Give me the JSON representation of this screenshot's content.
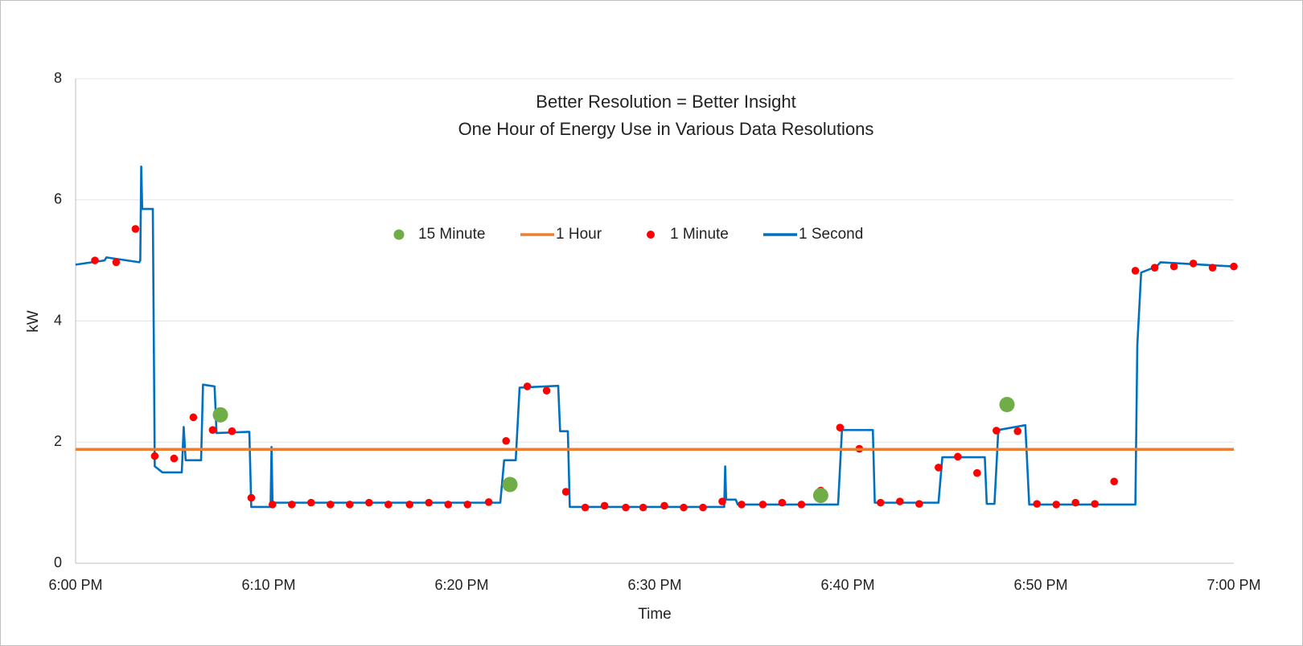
{
  "chart_data": {
    "type": "line",
    "title": "Better Resolution = Better Insight",
    "subtitle": "One Hour of Energy Use in Various Data Resolutions",
    "xlabel": "Time",
    "ylabel": "kW",
    "xlim": [
      0,
      60
    ],
    "xticks": [
      {
        "value": 0,
        "label": "6:00 PM"
      },
      {
        "value": 10,
        "label": "6:10 PM"
      },
      {
        "value": 20,
        "label": "6:20 PM"
      },
      {
        "value": 30,
        "label": "6:30 PM"
      },
      {
        "value": 40,
        "label": "6:40 PM"
      },
      {
        "value": 50,
        "label": "6:50 PM"
      },
      {
        "value": 60,
        "label": "7:00 PM"
      }
    ],
    "ylim": [
      0,
      8
    ],
    "yticks": [
      0,
      2,
      4,
      6,
      8
    ],
    "grid": true,
    "legend": "top",
    "series": [
      {
        "name": "15 Minute",
        "type": "scatter",
        "color": "#70ad47",
        "x": [
          7.5,
          22.5,
          38.6,
          48.25
        ],
        "values": [
          2.45,
          1.3,
          1.12,
          2.62
        ]
      },
      {
        "name": "1 Hour",
        "type": "line",
        "color": "#ed7d31",
        "x": [
          0,
          60
        ],
        "values": [
          1.88,
          1.88
        ]
      },
      {
        "name": "1 Minute",
        "type": "scatter",
        "color": "#ff0000",
        "x": [
          1.0,
          2.1,
          3.1,
          4.1,
          5.1,
          6.1,
          7.1,
          8.1,
          9.1,
          10.2,
          11.2,
          12.2,
          13.2,
          14.2,
          15.2,
          16.2,
          17.3,
          18.3,
          19.3,
          20.3,
          21.4,
          22.3,
          23.4,
          24.4,
          25.4,
          26.4,
          27.4,
          28.5,
          29.4,
          30.5,
          31.5,
          32.5,
          33.5,
          34.5,
          35.6,
          36.6,
          37.6,
          38.6,
          39.6,
          40.6,
          41.7,
          42.7,
          43.7,
          44.7,
          45.7,
          46.7,
          47.7,
          48.8,
          49.8,
          50.8,
          51.8,
          52.8,
          53.8,
          54.9,
          55.9,
          56.9,
          57.9,
          58.9,
          60
        ],
        "values": [
          5.0,
          4.97,
          5.52,
          1.77,
          1.73,
          2.41,
          2.2,
          2.18,
          1.08,
          0.97,
          0.97,
          1.0,
          0.97,
          0.97,
          1.0,
          0.97,
          0.97,
          1.0,
          0.97,
          0.97,
          1.01,
          2.02,
          2.92,
          2.85,
          1.18,
          0.92,
          0.95,
          0.92,
          0.92,
          0.95,
          0.92,
          0.92,
          1.02,
          0.97,
          0.97,
          1.0,
          0.97,
          1.2,
          2.24,
          1.89,
          1.0,
          1.02,
          0.98,
          1.58,
          1.76,
          1.49,
          2.19,
          2.18,
          0.98,
          0.97,
          1.0,
          0.98,
          1.35,
          4.83,
          4.88,
          4.9,
          4.95,
          4.88,
          4.9
        ]
      },
      {
        "name": "1 Second",
        "type": "line",
        "color": "#0070c0",
        "x": [
          0,
          1.5,
          1.6,
          3.3,
          3.35,
          3.4,
          3.45,
          4.0,
          4.1,
          4.5,
          5.5,
          5.6,
          5.7,
          6.5,
          6.6,
          7.2,
          7.3,
          9.0,
          9.1,
          10.1,
          10.15,
          10.2,
          22.0,
          22.2,
          22.8,
          23.0,
          25.0,
          25.1,
          25.5,
          25.6,
          33.6,
          33.65,
          33.7,
          34.2,
          34.3,
          39.5,
          39.7,
          41.3,
          41.4,
          44.7,
          44.9,
          47.1,
          47.2,
          47.6,
          47.8,
          49.2,
          49.4,
          54.9,
          55.0,
          55.2,
          56.0,
          56.2,
          60
        ],
        "values": [
          4.93,
          5.0,
          5.05,
          4.97,
          5.0,
          6.55,
          5.85,
          5.85,
          1.6,
          1.5,
          1.5,
          2.25,
          1.7,
          1.7,
          2.95,
          2.92,
          2.15,
          2.17,
          0.93,
          0.93,
          1.92,
          1.0,
          1.0,
          1.7,
          1.7,
          2.9,
          2.93,
          2.18,
          2.18,
          0.93,
          0.93,
          1.6,
          1.05,
          1.05,
          0.97,
          0.97,
          2.2,
          2.2,
          1.0,
          1.0,
          1.75,
          1.75,
          0.98,
          0.98,
          2.2,
          2.28,
          0.97,
          0.97,
          3.6,
          4.8,
          4.9,
          4.97,
          4.9
        ]
      }
    ]
  }
}
